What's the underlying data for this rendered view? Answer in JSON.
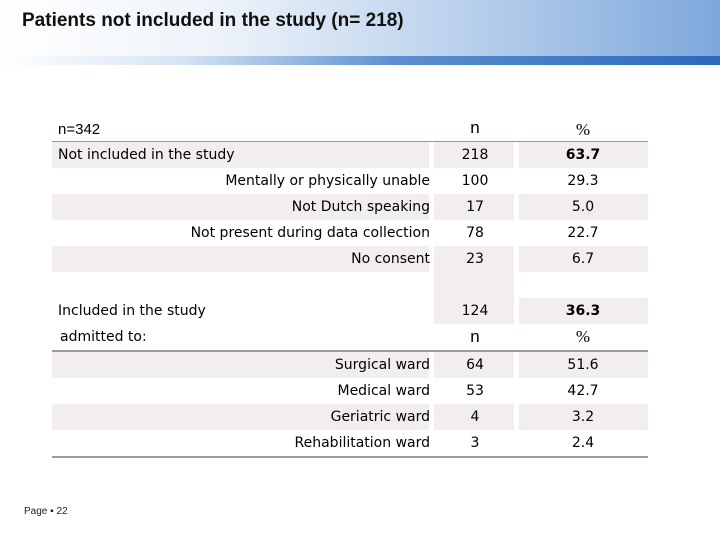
{
  "slide": {
    "title": "Patients not included in the study (n= 218)",
    "footer": "Page ▪ 22"
  },
  "table": {
    "header": {
      "label": "n=342",
      "n": "n",
      "pct": "%"
    },
    "not_included": {
      "label": "Not included in the study",
      "n": "218",
      "pct": "63.7"
    },
    "reasons": [
      {
        "label": "Mentally or physically unable",
        "n": "100",
        "pct": "29.3"
      },
      {
        "label": "Not Dutch speaking",
        "n": "17",
        "pct": "5.0"
      },
      {
        "label": "Not present during data collection",
        "n": "78",
        "pct": "22.7"
      },
      {
        "label": "No consent",
        "n": "23",
        "pct": "6.7"
      }
    ],
    "included": {
      "label": "Included in the study",
      "n": "124",
      "pct": "36.3"
    },
    "admitted": {
      "label": "admitted to:",
      "n": "n",
      "pct": "%"
    },
    "wards": [
      {
        "label": "Surgical ward",
        "n": "64",
        "pct": "51.6"
      },
      {
        "label": "Medical ward",
        "n": "53",
        "pct": "42.7"
      },
      {
        "label": "Geriatric ward",
        "n": "4",
        "pct": "3.2"
      },
      {
        "label": "Rehabilitation ward",
        "n": "3",
        "pct": "2.4"
      }
    ]
  }
}
